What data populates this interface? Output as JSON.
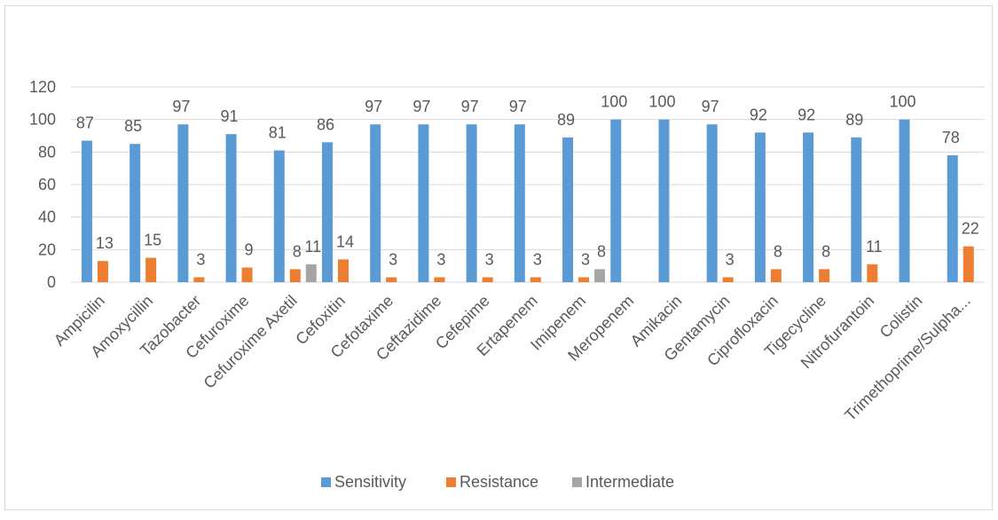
{
  "chart_data": {
    "type": "bar",
    "title": "",
    "xlabel": "",
    "ylabel": "",
    "ylim": [
      0,
      120
    ],
    "yticks": [
      0,
      20,
      40,
      60,
      80,
      100,
      120
    ],
    "grid": true,
    "legend_position": "bottom",
    "categories": [
      "Ampicilin",
      "Amoxycillin",
      "Tazobacter",
      "Cefuroxime",
      "Cefuroxime Axetil",
      "Cefoxitin",
      "Cefotaxime",
      "Ceftazidime",
      "Cefepime",
      "Ertapenem",
      "Imipenem",
      "Meropenem",
      "Amikacin",
      "Gentamycin",
      "Ciprofloxacin",
      "Tigecycline",
      "Nitrofurantoin",
      "Colistin",
      "Trimethoprime/Sulpha..."
    ],
    "series": [
      {
        "name": "Sensitivity",
        "color": "#5B9BD5",
        "values": [
          87,
          85,
          97,
          91,
          81,
          86,
          97,
          97,
          97,
          97,
          89,
          100,
          100,
          97,
          92,
          92,
          89,
          100,
          78
        ]
      },
      {
        "name": "Resistance",
        "color": "#ED7D31",
        "values": [
          13,
          15,
          3,
          9,
          8,
          14,
          3,
          3,
          3,
          3,
          3,
          null,
          null,
          3,
          8,
          8,
          11,
          null,
          22
        ]
      },
      {
        "name": "Intermediate",
        "color": "#A5A5A5",
        "values": [
          null,
          null,
          null,
          null,
          11,
          null,
          null,
          null,
          null,
          null,
          8,
          null,
          null,
          null,
          null,
          null,
          null,
          null,
          null
        ]
      }
    ]
  }
}
